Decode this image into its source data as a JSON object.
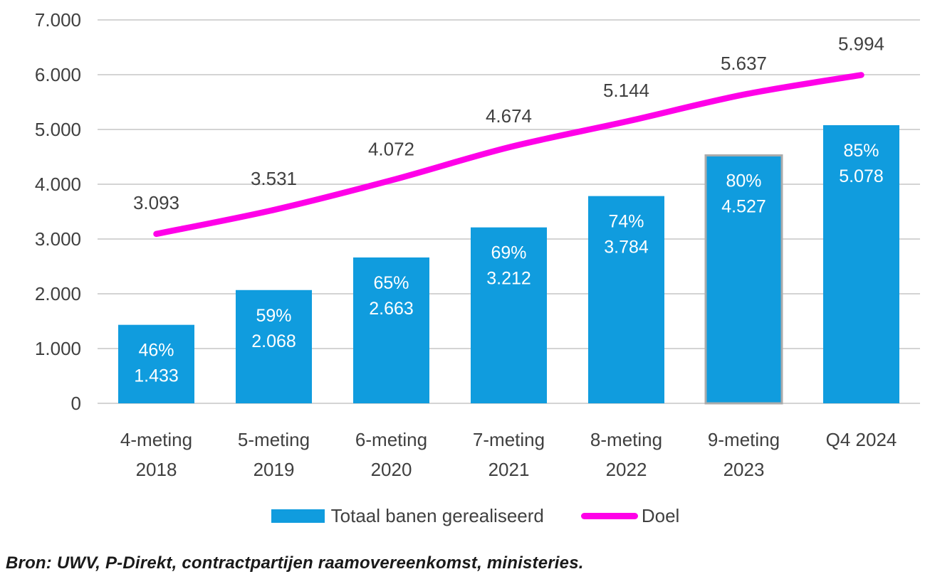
{
  "chart_data": {
    "type": "bar",
    "subtype": "bar-line-combo",
    "title": "",
    "xlabel": "",
    "ylabel": "",
    "ylim": [
      0,
      7000
    ],
    "ytick_labels": [
      "0",
      "1.000",
      "2.000",
      "3.000",
      "4.000",
      "5.000",
      "6.000",
      "7.000"
    ],
    "grid": true,
    "legend_position": "bottom",
    "categories": [
      [
        "4-meting",
        "2018"
      ],
      [
        "5-meting",
        "2019"
      ],
      [
        "6-meting",
        "2020"
      ],
      [
        "7-meting",
        "2021"
      ],
      [
        "8-meting",
        "2022"
      ],
      [
        "9-meting",
        "2023"
      ],
      [
        "Q4 2024"
      ]
    ],
    "series": [
      {
        "name": "Totaal banen gerealiseerd",
        "type": "bar",
        "color": "#109CDE",
        "values": [
          1433,
          2068,
          2663,
          3212,
          3784,
          4527,
          5078
        ],
        "bar_labels": [
          [
            "46%",
            "1.433"
          ],
          [
            "59%",
            "2.068"
          ],
          [
            "65%",
            "2.663"
          ],
          [
            "69%",
            "3.212"
          ],
          [
            "74%",
            "3.784"
          ],
          [
            "80%",
            "4.527"
          ],
          [
            "85%",
            "5.078"
          ]
        ],
        "highlighted_bar_index": 5,
        "highlight_outline_color": "#ABABAB"
      },
      {
        "name": "Doel",
        "type": "line",
        "color": "#FF00E8",
        "values": [
          3093,
          3531,
          4072,
          4674,
          5144,
          5637,
          5994
        ],
        "point_labels": [
          "3.093",
          "3.531",
          "4.072",
          "4.674",
          "5.144",
          "5.637",
          "5.994"
        ]
      }
    ]
  },
  "colors": {
    "bar": "#109CDE",
    "line": "#FF00E8",
    "grid": "#D4D4D4",
    "axis_text": "#404040",
    "bar_label_text": "#FFFFFF",
    "highlight_outline": "#ABABAB"
  },
  "source_note": "Bron: UWV, P-Direkt, contractpartijen raamovereenkomst, ministeries."
}
